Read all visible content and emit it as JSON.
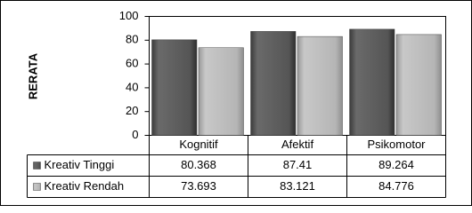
{
  "chart_data": {
    "type": "bar",
    "y_label": "RERATA",
    "categories": [
      "Kognitif",
      "Afektif",
      "Psikomotor"
    ],
    "series": [
      {
        "name": "Kreativ Tinggi",
        "color": "#555555",
        "values": [
          80.368,
          87.41,
          89.264
        ]
      },
      {
        "name": "Kreativ Rendah",
        "color": "#b5b5b5",
        "values": [
          73.693,
          83.121,
          84.776
        ]
      }
    ],
    "ylim": [
      0,
      100
    ],
    "yticks": [
      0,
      20,
      40,
      60,
      80,
      100
    ],
    "grid": false,
    "data_table": true
  }
}
